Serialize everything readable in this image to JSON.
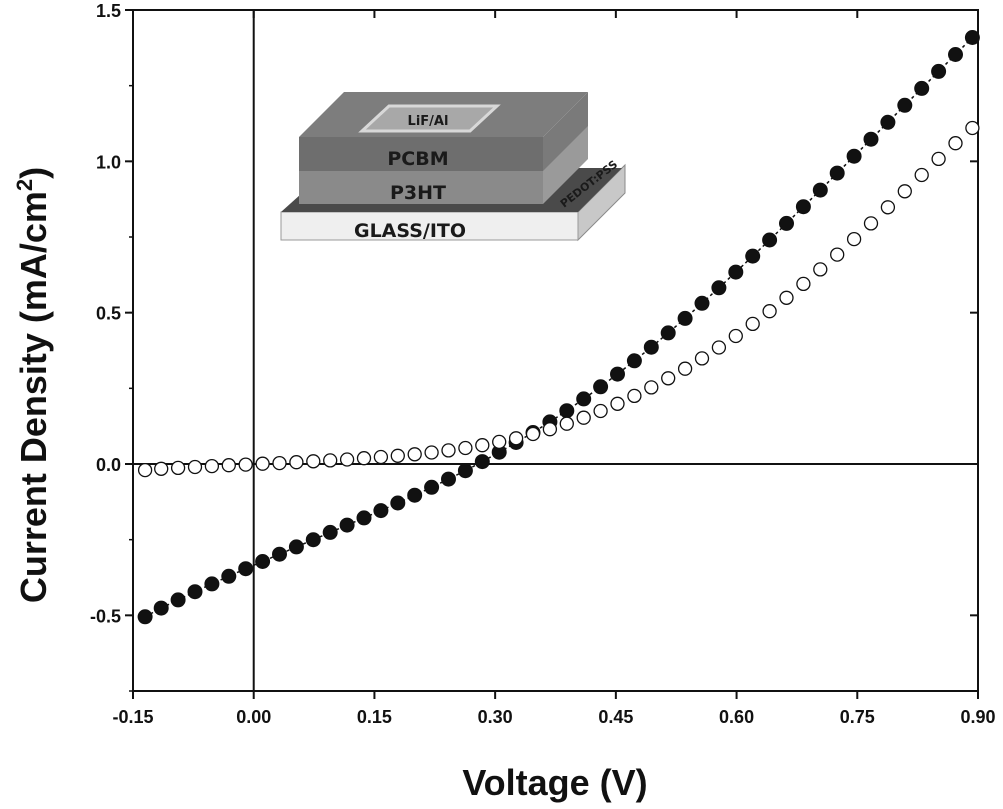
{
  "chart_data": {
    "type": "scatter",
    "xlabel": "Voltage (V)",
    "ylabel": "Current Density (mA/cm",
    "ylabel_superscript": "2",
    "ylabel_close": ")",
    "xlim": [
      -0.15,
      0.9
    ],
    "ylim": [
      -0.75,
      1.5
    ],
    "xticks": [
      -0.15,
      0.0,
      0.15,
      0.3,
      0.45,
      0.6,
      0.75,
      0.9
    ],
    "xtick_labels": [
      "-0.15",
      "0.00",
      "0.15",
      "0.30",
      "0.45",
      "0.60",
      "0.75",
      "0.90"
    ],
    "yticks": [
      -0.5,
      0.0,
      0.5,
      1.0,
      1.5
    ],
    "ytick_labels": [
      "-0.5",
      "0.0",
      "0.5",
      "1.0",
      "1.5"
    ],
    "grid": false,
    "reference_lines": {
      "x": 0.0,
      "y": 0.0
    },
    "series": [
      {
        "marker": "filled-circle",
        "color": "#111111",
        "x": [
          -0.135,
          -0.115,
          -0.094,
          -0.073,
          -0.052,
          -0.031,
          -0.01,
          0.011,
          0.032,
          0.053,
          0.074,
          0.095,
          0.116,
          0.137,
          0.158,
          0.179,
          0.2,
          0.221,
          0.242,
          0.263,
          0.284,
          0.305,
          0.326,
          0.347,
          0.368,
          0.389,
          0.41,
          0.431,
          0.452,
          0.473,
          0.494,
          0.515,
          0.536,
          0.557,
          0.578,
          0.599,
          0.62,
          0.641,
          0.662,
          0.683,
          0.704,
          0.725,
          0.746,
          0.767,
          0.788,
          0.809,
          0.83,
          0.851,
          0.872,
          0.893
        ],
        "y": [
          -0.505,
          -0.476,
          -0.449,
          -0.422,
          -0.396,
          -0.371,
          -0.346,
          -0.322,
          -0.298,
          -0.274,
          -0.25,
          -0.226,
          -0.202,
          -0.178,
          -0.154,
          -0.129,
          -0.103,
          -0.077,
          -0.05,
          -0.022,
          0.008,
          0.039,
          0.071,
          0.104,
          0.139,
          0.176,
          0.215,
          0.255,
          0.297,
          0.341,
          0.386,
          0.433,
          0.481,
          0.531,
          0.582,
          0.634,
          0.687,
          0.74,
          0.795,
          0.85,
          0.905,
          0.961,
          1.017,
          1.073,
          1.129,
          1.185,
          1.241,
          1.297,
          1.353,
          1.409
        ]
      },
      {
        "marker": "open-circle",
        "color": "#111111",
        "x": [
          -0.135,
          -0.115,
          -0.094,
          -0.073,
          -0.052,
          -0.031,
          -0.01,
          0.011,
          0.032,
          0.053,
          0.074,
          0.095,
          0.116,
          0.137,
          0.158,
          0.179,
          0.2,
          0.221,
          0.242,
          0.263,
          0.284,
          0.305,
          0.326,
          0.347,
          0.368,
          0.389,
          0.41,
          0.431,
          0.452,
          0.473,
          0.494,
          0.515,
          0.536,
          0.557,
          0.578,
          0.599,
          0.62,
          0.641,
          0.662,
          0.683,
          0.704,
          0.725,
          0.746,
          0.767,
          0.788,
          0.809,
          0.83,
          0.851,
          0.872,
          0.893
        ],
        "y": [
          -0.02,
          -0.016,
          -0.013,
          -0.01,
          -0.007,
          -0.004,
          -0.002,
          0.001,
          0.003,
          0.006,
          0.009,
          0.012,
          0.015,
          0.019,
          0.023,
          0.027,
          0.032,
          0.038,
          0.045,
          0.053,
          0.062,
          0.073,
          0.085,
          0.099,
          0.115,
          0.133,
          0.153,
          0.175,
          0.199,
          0.225,
          0.253,
          0.283,
          0.315,
          0.349,
          0.385,
          0.423,
          0.463,
          0.505,
          0.549,
          0.595,
          0.643,
          0.692,
          0.743,
          0.795,
          0.848,
          0.901,
          0.955,
          1.008,
          1.06,
          1.11
        ]
      }
    ],
    "inset": {
      "layers": [
        "LiF/Al",
        "PCBM",
        "P3HT",
        "PEDOT:PSS",
        "GLASS/ITO"
      ],
      "colors": {
        "top_face": "#7d7d7d",
        "pcbm": "#6e6e6e",
        "p3ht": "#8a8a8a",
        "pedot": "#4a4a4a",
        "glass": "#efefef",
        "glass_side": "#c8c8c8",
        "lif_pad": "#a8a8a8"
      }
    }
  }
}
